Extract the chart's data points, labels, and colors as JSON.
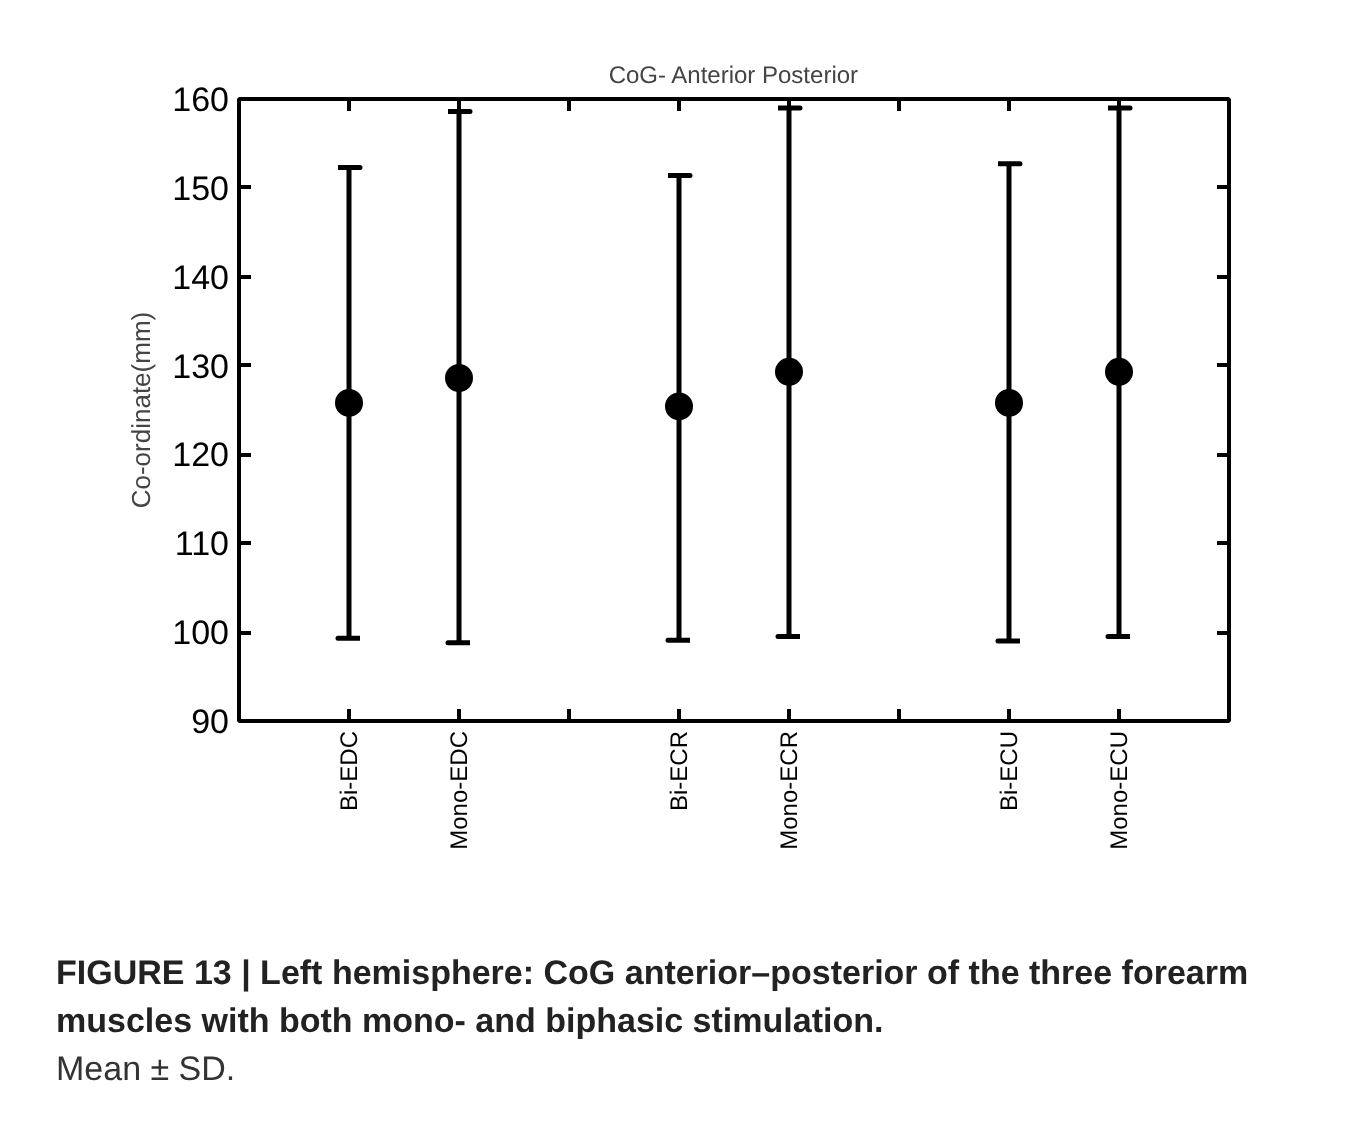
{
  "chart_data": {
    "type": "scatter",
    "title": "CoG- Anterior Posterior",
    "ylabel": "Co-ordinate(mm)",
    "categories": [
      "Bi-EDC",
      "Mono-EDC",
      null,
      "Bi-ECR",
      "Mono-ECR",
      null,
      "Bi-ECU",
      "Mono-ECU"
    ],
    "series": [
      {
        "color": "#000000",
        "values": [
          125.8,
          128.6,
          null,
          125.4,
          129.3,
          null,
          125.8,
          129.3
        ],
        "errors": [
          [
            99.3,
            152.3
          ],
          [
            98.8,
            158.6
          ],
          null,
          [
            99.1,
            151.4
          ],
          [
            99.5,
            159.0
          ],
          null,
          [
            99.0,
            152.7
          ],
          [
            99.5,
            159.0
          ]
        ]
      }
    ],
    "ylim": [
      90,
      160
    ],
    "yticks": [
      90,
      100,
      110,
      120,
      130,
      140,
      150,
      160
    ],
    "marker": "circle",
    "annotations": [
      "FIGURE 13 | Left hemisphere: CoG anterior–posterior of the three forearm muscles with both mono- and biphasic stimulation.",
      "Mean ± SD."
    ]
  }
}
